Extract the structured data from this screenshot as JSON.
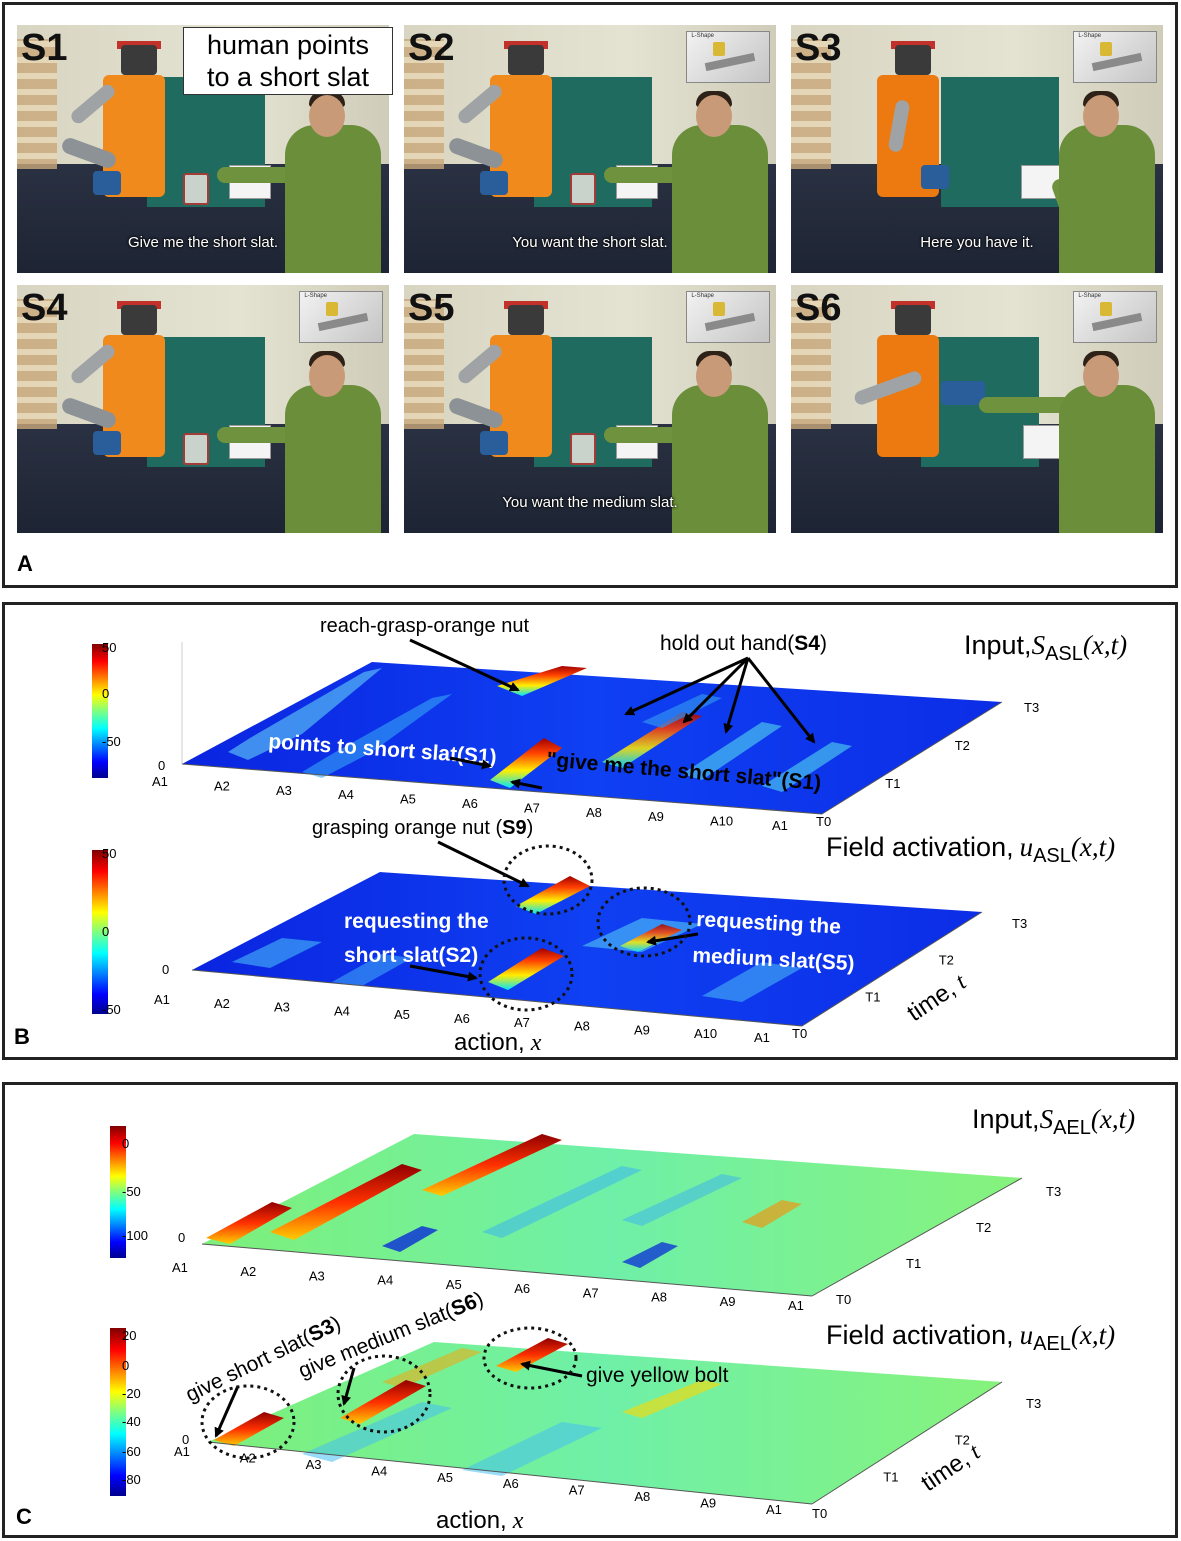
{
  "panels": {
    "a": {
      "label": "A"
    },
    "b": {
      "label": "B"
    },
    "c": {
      "label": "C"
    }
  },
  "photos": [
    {
      "id": "S1",
      "caption": "Give me the short slat.",
      "inset": ""
    },
    {
      "id": "S2",
      "caption": "You want the short slat.",
      "inset": "L-Shape"
    },
    {
      "id": "S3",
      "caption": "Here you have it.",
      "inset": "L-Shape"
    },
    {
      "id": "S4",
      "caption": "",
      "inset": "L-Shape"
    },
    {
      "id": "S5",
      "caption": "You want the medium slat.",
      "inset": "L-Shape"
    },
    {
      "id": "S6",
      "caption": "",
      "inset": "L-Shape"
    }
  ],
  "note_box": {
    "line1": "human points",
    "line2": "to a short slat"
  },
  "asl": {
    "x_ticks": [
      "A1",
      "A2",
      "A3",
      "A4",
      "A5",
      "A6",
      "A7",
      "A8",
      "A9",
      "A10",
      "A1"
    ],
    "t_ticks": [
      "T0",
      "T1",
      "T2",
      "T3"
    ],
    "input": {
      "title": "Input,",
      "sym": "S",
      "sub": "ASL",
      "args": "(x,t)",
      "colorbar_ticks": [
        "50",
        "0",
        "-50"
      ],
      "z_tick": "0",
      "ann_reach": "reach-grasp-orange nut",
      "ann_hold_pre": "hold out hand(",
      "ann_hold_s": "S4",
      "ann_hold_post": ")",
      "ann_points_pre": "points to short slat(",
      "ann_points_s": "S1",
      "ann_points_post": ")",
      "ann_give_pre": "\"give me the short slat\"(",
      "ann_give_s": "S1",
      "ann_give_post": ")"
    },
    "field": {
      "title": "Field activation,",
      "sym": "u",
      "sub": "ASL",
      "args": "(x,t)",
      "colorbar_ticks": [
        "50",
        "0",
        "-50"
      ],
      "z_tick": "0",
      "ann_grasp_pre": "grasping orange nut (",
      "ann_grasp_s": "S9",
      "ann_grasp_post": ")",
      "ann_req1_l1": "requesting the",
      "ann_req1_l2_pre": "short slat(",
      "ann_req1_s": "S2",
      "ann_req1_post": ")",
      "ann_req2_l1": "requesting the",
      "ann_req2_l2_pre": "medium slat(",
      "ann_req2_s": "S5",
      "ann_req2_post": ")",
      "xlabel": "action,",
      "xsym": "x",
      "tlabel": "time,",
      "tsym": "t"
    }
  },
  "ael": {
    "x_ticks": [
      "A1",
      "A2",
      "A3",
      "A4",
      "A5",
      "A6",
      "A7",
      "A8",
      "A9",
      "A1"
    ],
    "t_ticks": [
      "T0",
      "T1",
      "T2",
      "T3"
    ],
    "input": {
      "title": "Input,",
      "sym": "S",
      "sub": "AEL",
      "args": "(x,t)",
      "colorbar_ticks": [
        "0",
        "-50",
        "-100"
      ],
      "z_tick": "0"
    },
    "field": {
      "title": "Field activation,",
      "sym": "u",
      "sub": "AEL",
      "args": "(x,t)",
      "colorbar_ticks": [
        "20",
        "0",
        "-20",
        "-40",
        "-60",
        "-80"
      ],
      "z_tick": "0",
      "ann_short_pre": "give short slat(",
      "ann_short_s": "S3",
      "ann_short_post": ")",
      "ann_medium_pre": "give medium slat(",
      "ann_medium_s": "S6",
      "ann_medium_post": ")",
      "ann_yellow": "give yellow bolt",
      "xlabel": "action,",
      "xsym": "x",
      "tlabel": "time,",
      "tsym": "t"
    }
  }
}
